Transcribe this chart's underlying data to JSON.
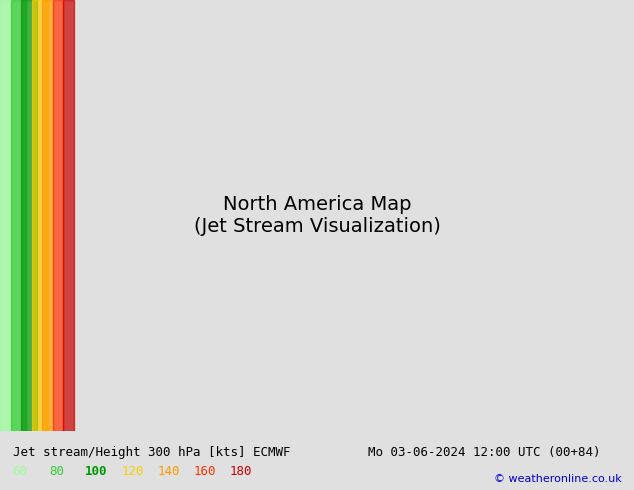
{
  "title_left": "Jet stream/Height 300 hPa [kts] ECMWF",
  "title_right": "Mo 03-06-2024 12:00 UTC (00+84)",
  "copyright": "© weatheronline.co.uk",
  "legend_values": [
    60,
    80,
    100,
    120,
    140,
    160,
    180
  ],
  "legend_colors": [
    "#99ff99",
    "#33cc33",
    "#009900",
    "#ffcc00",
    "#ff9900",
    "#ff3300",
    "#cc0000"
  ],
  "bg_color": "#e8e8e8",
  "map_bg": "#d0e8d0",
  "title_fontsize": 9,
  "legend_fontsize": 9,
  "copyright_color": "#0000cc"
}
